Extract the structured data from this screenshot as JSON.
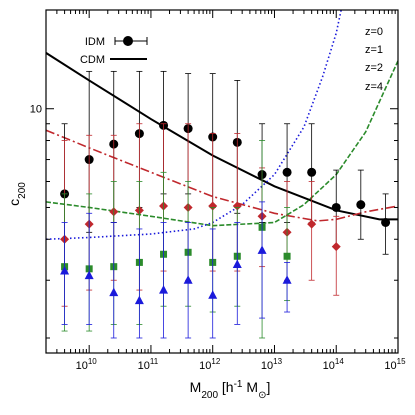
{
  "chart_data": {
    "type": "scatter",
    "xscale": "log",
    "yscale": "log",
    "xlim": [
      2000000000.0,
      1000000000000000.0
    ],
    "ylim": [
      1.8,
      20
    ],
    "xlabel": {
      "main": "M",
      "sub": "200",
      "unit_open": " [h",
      "unit_sup": "-1",
      "unit_mid": " M",
      "unit_sub": "⊙",
      "unit_close": "]"
    },
    "ylabel": {
      "main": "c",
      "sub": "200"
    },
    "x_ticks": [
      {
        "value": 10000000000.0,
        "base": "10",
        "exp": "10"
      },
      {
        "value": 100000000000.0,
        "base": "10",
        "exp": "11"
      },
      {
        "value": 1000000000000.0,
        "base": "10",
        "exp": "12"
      },
      {
        "value": 10000000000000.0,
        "base": "10",
        "exp": "13"
      },
      {
        "value": 100000000000000.0,
        "base": "10",
        "exp": "14"
      },
      {
        "value": 1000000000000000.0,
        "base": "10",
        "exp": "15"
      }
    ],
    "y_ticks": [
      {
        "value": 10,
        "label": "10"
      }
    ],
    "legend_marker": [
      {
        "label": "IDM",
        "marker": "circle",
        "color": "#000000"
      },
      {
        "label": "CDM",
        "marker": "line",
        "color": "#000000"
      }
    ],
    "legend_redshift": [
      {
        "label": "z=0",
        "color": "#000000"
      },
      {
        "label": "z=1",
        "color": "#c0282d"
      },
      {
        "label": "z=2",
        "color": "#2b8b2b"
      },
      {
        "label": "z=4",
        "color": "#1a1adb"
      }
    ],
    "series": [
      {
        "name": "z=0",
        "kind": "points",
        "marker": "circle",
        "color": "#000000",
        "points": [
          {
            "x": 4000000000.0,
            "y": 5.5,
            "lo": 3.2,
            "hi": 9.0
          },
          {
            "x": 10000000000.0,
            "y": 7.0,
            "lo": 4.2,
            "hi": 13.0
          },
          {
            "x": 25000000000.0,
            "y": 7.8,
            "lo": 4.5,
            "hi": 13.0
          },
          {
            "x": 65000000000.0,
            "y": 8.4,
            "lo": 5.0,
            "hi": 13.0
          },
          {
            "x": 160000000000.0,
            "y": 8.9,
            "lo": 5.5,
            "hi": 13.0
          },
          {
            "x": 400000000000.0,
            "y": 8.7,
            "lo": 5.5,
            "hi": 12.8
          },
          {
            "x": 1000000000000.0,
            "y": 8.2,
            "lo": 5.0,
            "hi": 12.8
          },
          {
            "x": 2500000000000.0,
            "y": 7.9,
            "lo": 4.8,
            "hi": 12.2
          },
          {
            "x": 6300000000000.0,
            "y": 6.3,
            "lo": 4.5,
            "hi": 9.0
          },
          {
            "x": 16000000000000.0,
            "y": 6.4,
            "lo": 4.5,
            "hi": 9.0
          },
          {
            "x": 40000000000000.0,
            "y": 6.4,
            "lo": 4.5,
            "hi": 9.0
          },
          {
            "x": 100000000000000.0,
            "y": 5.0,
            "lo": 3.8,
            "hi": 6.5
          },
          {
            "x": 250000000000000.0,
            "y": 5.1,
            "lo": 4.0,
            "hi": 6.5
          },
          {
            "x": 630000000000000.0,
            "y": 4.5,
            "lo": 3.6,
            "hi": 5.5
          }
        ]
      },
      {
        "name": "z=1",
        "kind": "points",
        "marker": "diamond",
        "color": "#c0282d",
        "points": [
          {
            "x": 4000000000.0,
            "y": 4.0,
            "lo": 2.5,
            "hi": 8.0
          },
          {
            "x": 10000000000.0,
            "y": 4.45,
            "lo": 2.8,
            "hi": 8.3
          },
          {
            "x": 25000000000.0,
            "y": 4.85,
            "lo": 3.0,
            "hi": 8.3
          },
          {
            "x": 65000000000.0,
            "y": 4.9,
            "lo": 2.8,
            "hi": 9.0
          },
          {
            "x": 160000000000.0,
            "y": 5.05,
            "lo": 3.2,
            "hi": 9.0
          },
          {
            "x": 400000000000.0,
            "y": 5.0,
            "lo": 3.0,
            "hi": 9.0
          },
          {
            "x": 1000000000000.0,
            "y": 5.05,
            "lo": 3.2,
            "hi": 8.4
          },
          {
            "x": 2500000000000.0,
            "y": 5.05,
            "lo": 3.2,
            "hi": 8.4
          },
          {
            "x": 6300000000000.0,
            "y": 4.7,
            "lo": 3.3,
            "hi": 6.6
          },
          {
            "x": 16000000000000.0,
            "y": 4.2,
            "lo": 3.0,
            "hi": 6.0
          },
          {
            "x": 40000000000000.0,
            "y": 4.45,
            "lo": 3.0,
            "hi": 6.0
          },
          {
            "x": 100000000000000.0,
            "y": 3.8,
            "lo": 2.7,
            "hi": 4.7
          }
        ]
      },
      {
        "name": "z=2",
        "kind": "points",
        "marker": "square",
        "color": "#2b8b2b",
        "points": [
          {
            "x": 4000000000.0,
            "y": 3.3,
            "lo": 2.1,
            "hi": 5.5
          },
          {
            "x": 10000000000.0,
            "y": 3.25,
            "lo": 2.1,
            "hi": 5.5
          },
          {
            "x": 25000000000.0,
            "y": 3.3,
            "lo": 2.2,
            "hi": 6.0
          },
          {
            "x": 65000000000.0,
            "y": 3.4,
            "lo": 2.2,
            "hi": 6.0
          },
          {
            "x": 160000000000.0,
            "y": 3.6,
            "lo": 2.5,
            "hi": 6.4
          },
          {
            "x": 400000000000.0,
            "y": 3.65,
            "lo": 2.5,
            "hi": 6.0
          },
          {
            "x": 1000000000000.0,
            "y": 3.4,
            "lo": 2.4,
            "hi": 5.0
          },
          {
            "x": 2500000000000.0,
            "y": 3.55,
            "lo": 2.5,
            "hi": 5.0
          },
          {
            "x": 6300000000000.0,
            "y": 4.35,
            "lo": 2.0,
            "hi": 8.0
          },
          {
            "x": 16000000000000.0,
            "y": 3.55,
            "lo": 2.6,
            "hi": 5.0
          }
        ]
      },
      {
        "name": "z=4",
        "kind": "points",
        "marker": "triangle",
        "color": "#1a1adb",
        "points": [
          {
            "x": 4000000000.0,
            "y": 3.2,
            "lo": 2.2,
            "hi": 4.5
          },
          {
            "x": 10000000000.0,
            "y": 3.1,
            "lo": 2.2,
            "hi": 4.8
          },
          {
            "x": 25000000000.0,
            "y": 2.75,
            "lo": 2.0,
            "hi": 4.5
          },
          {
            "x": 65000000000.0,
            "y": 2.6,
            "lo": 2.0,
            "hi": 4.3
          },
          {
            "x": 160000000000.0,
            "y": 2.8,
            "lo": 2.0,
            "hi": 4.5
          },
          {
            "x": 400000000000.0,
            "y": 3.0,
            "lo": 2.0,
            "hi": 4.5
          },
          {
            "x": 1000000000000.0,
            "y": 2.7,
            "lo": 2.0,
            "hi": 4.3
          },
          {
            "x": 2500000000000.0,
            "y": 3.35,
            "lo": 2.2,
            "hi": 4.5
          },
          {
            "x": 6300000000000.0,
            "y": 3.7,
            "lo": 2.3,
            "hi": 5.2
          },
          {
            "x": 16000000000000.0,
            "y": 3.0,
            "lo": 2.4,
            "hi": 3.4
          }
        ]
      },
      {
        "name": "CDM",
        "kind": "line",
        "style": "solid",
        "color": "#000000",
        "points": [
          [
            2000000000.0,
            14.8
          ],
          [
            10000000000.0,
            12.2
          ],
          [
            100000000000.0,
            9.3
          ],
          [
            1000000000000.0,
            7.2
          ],
          [
            10000000000000.0,
            5.8
          ],
          [
            100000000000000.0,
            4.9
          ],
          [
            500000000000000.0,
            4.6
          ],
          [
            1000000000000000.0,
            4.6
          ]
        ]
      },
      {
        "name": "CDM",
        "kind": "line",
        "style": "dashdot",
        "color": "#c0282d",
        "points": [
          [
            2000000000.0,
            8.6
          ],
          [
            10000000000.0,
            7.6
          ],
          [
            100000000000.0,
            6.4
          ],
          [
            1000000000000.0,
            5.4
          ],
          [
            10000000000000.0,
            4.8
          ],
          [
            50000000000000.0,
            4.55
          ],
          [
            100000000000000.0,
            4.6
          ],
          [
            300000000000000.0,
            4.85
          ],
          [
            1000000000000000.0,
            5.05
          ]
        ]
      },
      {
        "name": "CDM",
        "kind": "line",
        "style": "dashed",
        "color": "#2b8b2b",
        "points": [
          [
            2000000000.0,
            5.2
          ],
          [
            10000000000.0,
            5.0
          ],
          [
            100000000000.0,
            4.7
          ],
          [
            1000000000000.0,
            4.4
          ],
          [
            10000000000000.0,
            4.5
          ],
          [
            30000000000000.0,
            5.1
          ],
          [
            100000000000000.0,
            6.3
          ],
          [
            300000000000000.0,
            8.5
          ],
          [
            1000000000000000.0,
            14.0
          ]
        ]
      },
      {
        "name": "CDM",
        "kind": "line",
        "style": "dotted",
        "color": "#1a1adb",
        "points": [
          [
            2000000000.0,
            4.0
          ],
          [
            10000000000.0,
            4.05
          ],
          [
            100000000000.0,
            4.15
          ],
          [
            500000000000.0,
            4.3
          ],
          [
            1000000000000.0,
            4.5
          ],
          [
            3000000000000.0,
            5.1
          ],
          [
            10000000000000.0,
            6.3
          ],
          [
            30000000000000.0,
            8.8
          ],
          [
            60000000000000.0,
            12.5
          ],
          [
            100000000000000.0,
            17.0
          ],
          [
            120000000000000.0,
            20.0
          ]
        ]
      }
    ]
  }
}
